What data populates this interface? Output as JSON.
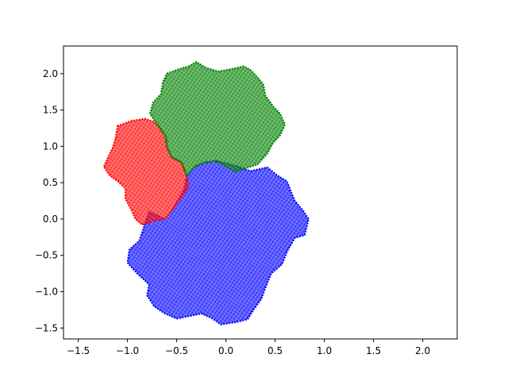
{
  "chart_data": {
    "type": "scatter",
    "title": "",
    "xlabel": "",
    "ylabel": "",
    "xlim": [
      -1.65,
      2.35
    ],
    "ylim": [
      -1.65,
      2.38
    ],
    "grid": false,
    "x_ticks": [
      -1.5,
      -1.0,
      -0.5,
      0.0,
      0.5,
      1.0,
      1.5,
      2.0
    ],
    "x_tick_labels": [
      "−1.5",
      "−1.0",
      "−0.5",
      "0.0",
      "0.5",
      "1.0",
      "1.5",
      "2.0"
    ],
    "y_ticks": [
      -1.5,
      -1.0,
      -0.5,
      0.0,
      0.5,
      1.0,
      1.5,
      2.0
    ],
    "y_tick_labels": [
      "−1.5",
      "−1.0",
      "−0.5",
      "0.0",
      "0.5",
      "1.0",
      "1.5",
      "2.0"
    ],
    "series": [
      {
        "color": "#0000ff",
        "region_outline": [
          [
            -0.1,
            0.8
          ],
          [
            0.08,
            0.74
          ],
          [
            0.25,
            0.66
          ],
          [
            0.42,
            0.71
          ],
          [
            0.52,
            0.6
          ],
          [
            0.62,
            0.52
          ],
          [
            0.66,
            0.38
          ],
          [
            0.7,
            0.25
          ],
          [
            0.78,
            0.12
          ],
          [
            0.84,
            0.0
          ],
          [
            0.8,
            -0.22
          ],
          [
            0.7,
            -0.26
          ],
          [
            0.62,
            -0.45
          ],
          [
            0.57,
            -0.62
          ],
          [
            0.46,
            -0.75
          ],
          [
            0.4,
            -0.95
          ],
          [
            0.36,
            -1.1
          ],
          [
            0.28,
            -1.25
          ],
          [
            0.22,
            -1.38
          ],
          [
            0.1,
            -1.42
          ],
          [
            -0.05,
            -1.45
          ],
          [
            -0.15,
            -1.36
          ],
          [
            -0.25,
            -1.3
          ],
          [
            -0.35,
            -1.33
          ],
          [
            -0.5,
            -1.37
          ],
          [
            -0.62,
            -1.3
          ],
          [
            -0.73,
            -1.2
          ],
          [
            -0.8,
            -1.05
          ],
          [
            -0.78,
            -0.9
          ],
          [
            -0.9,
            -0.75
          ],
          [
            -1.0,
            -0.6
          ],
          [
            -0.98,
            -0.42
          ],
          [
            -0.88,
            -0.3
          ],
          [
            -0.83,
            -0.1
          ],
          [
            -0.78,
            0.1
          ],
          [
            -0.62,
            0.0
          ],
          [
            -0.55,
            0.12
          ],
          [
            -0.47,
            0.3
          ],
          [
            -0.42,
            0.42
          ],
          [
            -0.4,
            0.58
          ],
          [
            -0.32,
            0.72
          ],
          [
            -0.22,
            0.78
          ]
        ]
      },
      {
        "color": "#ff0000",
        "region_outline": [
          [
            -1.1,
            1.28
          ],
          [
            -0.96,
            1.35
          ],
          [
            -0.82,
            1.38
          ],
          [
            -0.7,
            1.32
          ],
          [
            -0.65,
            1.22
          ],
          [
            -0.6,
            1.12
          ],
          [
            -0.6,
            0.98
          ],
          [
            -0.55,
            0.85
          ],
          [
            -0.45,
            0.78
          ],
          [
            -0.4,
            0.6
          ],
          [
            -0.38,
            0.45
          ],
          [
            -0.45,
            0.3
          ],
          [
            -0.55,
            0.12
          ],
          [
            -0.62,
            0.0
          ],
          [
            -0.72,
            -0.02
          ],
          [
            -0.85,
            -0.08
          ],
          [
            -0.92,
            0.0
          ],
          [
            -0.95,
            0.1
          ],
          [
            -1.02,
            0.28
          ],
          [
            -1.02,
            0.42
          ],
          [
            -1.1,
            0.52
          ],
          [
            -1.18,
            0.6
          ],
          [
            -1.24,
            0.72
          ],
          [
            -1.2,
            0.84
          ],
          [
            -1.15,
            0.98
          ],
          [
            -1.12,
            1.12
          ]
        ]
      },
      {
        "color": "#008000",
        "region_outline": [
          [
            -0.6,
            2.0
          ],
          [
            -0.48,
            2.06
          ],
          [
            -0.38,
            2.1
          ],
          [
            -0.3,
            2.16
          ],
          [
            -0.2,
            2.08
          ],
          [
            -0.08,
            2.03
          ],
          [
            0.05,
            2.06
          ],
          [
            0.18,
            2.1
          ],
          [
            0.25,
            2.05
          ],
          [
            0.32,
            1.95
          ],
          [
            0.38,
            1.85
          ],
          [
            0.4,
            1.7
          ],
          [
            0.48,
            1.55
          ],
          [
            0.55,
            1.45
          ],
          [
            0.6,
            1.3
          ],
          [
            0.55,
            1.15
          ],
          [
            0.48,
            1.05
          ],
          [
            0.42,
            0.9
          ],
          [
            0.32,
            0.75
          ],
          [
            0.2,
            0.7
          ],
          [
            0.1,
            0.65
          ],
          [
            0.0,
            0.72
          ],
          [
            -0.1,
            0.8
          ],
          [
            -0.2,
            0.78
          ],
          [
            -0.32,
            0.72
          ],
          [
            -0.4,
            0.6
          ],
          [
            -0.45,
            0.78
          ],
          [
            -0.55,
            0.85
          ],
          [
            -0.6,
            1.0
          ],
          [
            -0.62,
            1.15
          ],
          [
            -0.7,
            1.3
          ],
          [
            -0.77,
            1.45
          ],
          [
            -0.74,
            1.6
          ],
          [
            -0.66,
            1.72
          ],
          [
            -0.64,
            1.88
          ]
        ]
      }
    ]
  }
}
